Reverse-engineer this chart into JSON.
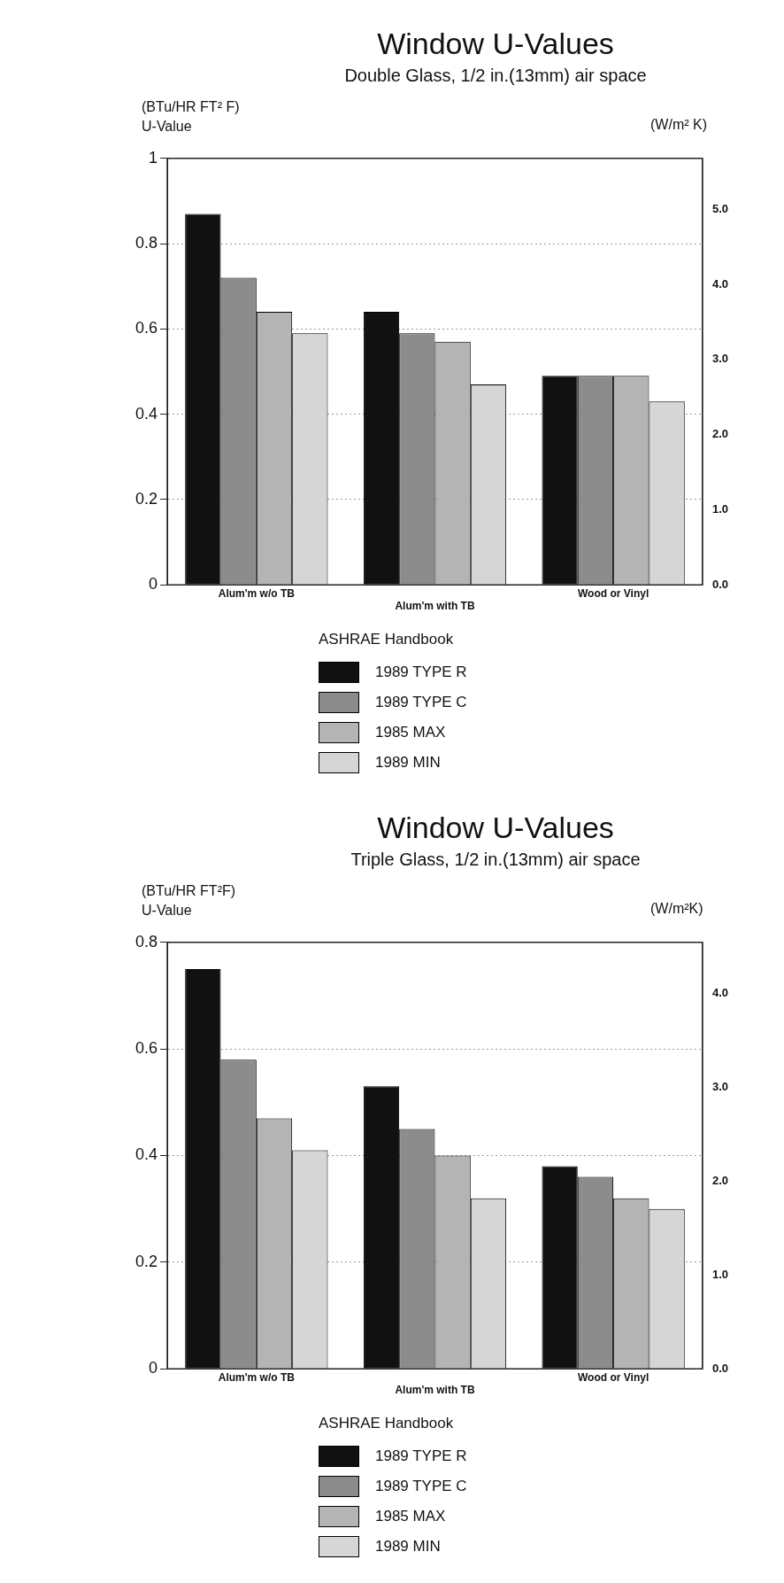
{
  "chart_data": [
    {
      "type": "bar",
      "title": "Window U-Values",
      "subtitle": "Double Glass, 1/2 in.(13mm) air space",
      "ylabel": "(BTu/HR FT² F)\nU-Value",
      "y2label": "(W/m² K)",
      "legend_title": "ASHRAE Handbook",
      "legend": "bottom",
      "grid": "y",
      "categories": [
        "Alum'm w/o TB",
        "Alum'm with TB",
        "Wood or Vinyl"
      ],
      "series": [
        {
          "name": "1989 TYPE R",
          "color": "#111111",
          "values": [
            0.87,
            0.64,
            0.49
          ]
        },
        {
          "name": "1989 TYPE C",
          "color": "#8c8c8c",
          "values": [
            0.72,
            0.59,
            0.49
          ]
        },
        {
          "name": "1985 MAX",
          "color": "#b4b4b4",
          "values": [
            0.64,
            0.57,
            0.49
          ]
        },
        {
          "name": "1989 MIN",
          "color": "#d6d6d6",
          "values": [
            0.59,
            0.47,
            0.43
          ]
        }
      ],
      "ylim": [
        0,
        1
      ],
      "yticks": [
        0,
        0.2,
        0.4,
        0.6,
        0.8,
        1
      ],
      "y2lim": [
        0,
        5.678
      ],
      "y2ticks": [
        {
          "value": 0,
          "label": "0.0"
        },
        {
          "value": 1,
          "label": "1.0"
        },
        {
          "value": 2,
          "label": "2.0"
        },
        {
          "value": 3,
          "label": "3.0"
        },
        {
          "value": 4,
          "label": "4.0"
        },
        {
          "value": 5,
          "label": "5.0"
        }
      ]
    },
    {
      "type": "bar",
      "title": "Window U-Values",
      "subtitle": "Triple Glass, 1/2 in.(13mm) air space",
      "ylabel": "(BTu/HR FT²F)\nU-Value",
      "y2label": "(W/m²K)",
      "legend_title": "ASHRAE Handbook",
      "legend": "bottom",
      "grid": "y",
      "categories": [
        "Alum'm w/o TB",
        "Alum'm with TB",
        "Wood or Vinyl"
      ],
      "series": [
        {
          "name": "1989 TYPE R",
          "color": "#111111",
          "values": [
            0.75,
            0.53,
            0.38
          ]
        },
        {
          "name": "1989 TYPE C",
          "color": "#8c8c8c",
          "values": [
            0.58,
            0.45,
            0.36
          ]
        },
        {
          "name": "1985 MAX",
          "color": "#b4b4b4",
          "values": [
            0.47,
            0.4,
            0.32
          ]
        },
        {
          "name": "1989 MIN",
          "color": "#d6d6d6",
          "values": [
            0.41,
            0.32,
            0.3
          ]
        }
      ],
      "ylim": [
        0,
        0.8
      ],
      "yticks": [
        0,
        0.2,
        0.4,
        0.6,
        0.8
      ],
      "y2lim": [
        0,
        4.542
      ],
      "y2ticks": [
        {
          "value": 0,
          "label": "0.0"
        },
        {
          "value": 1,
          "label": "1.0"
        },
        {
          "value": 2,
          "label": "2.0"
        },
        {
          "value": 3,
          "label": "3.0"
        },
        {
          "value": 4,
          "label": "4.0"
        }
      ]
    }
  ]
}
